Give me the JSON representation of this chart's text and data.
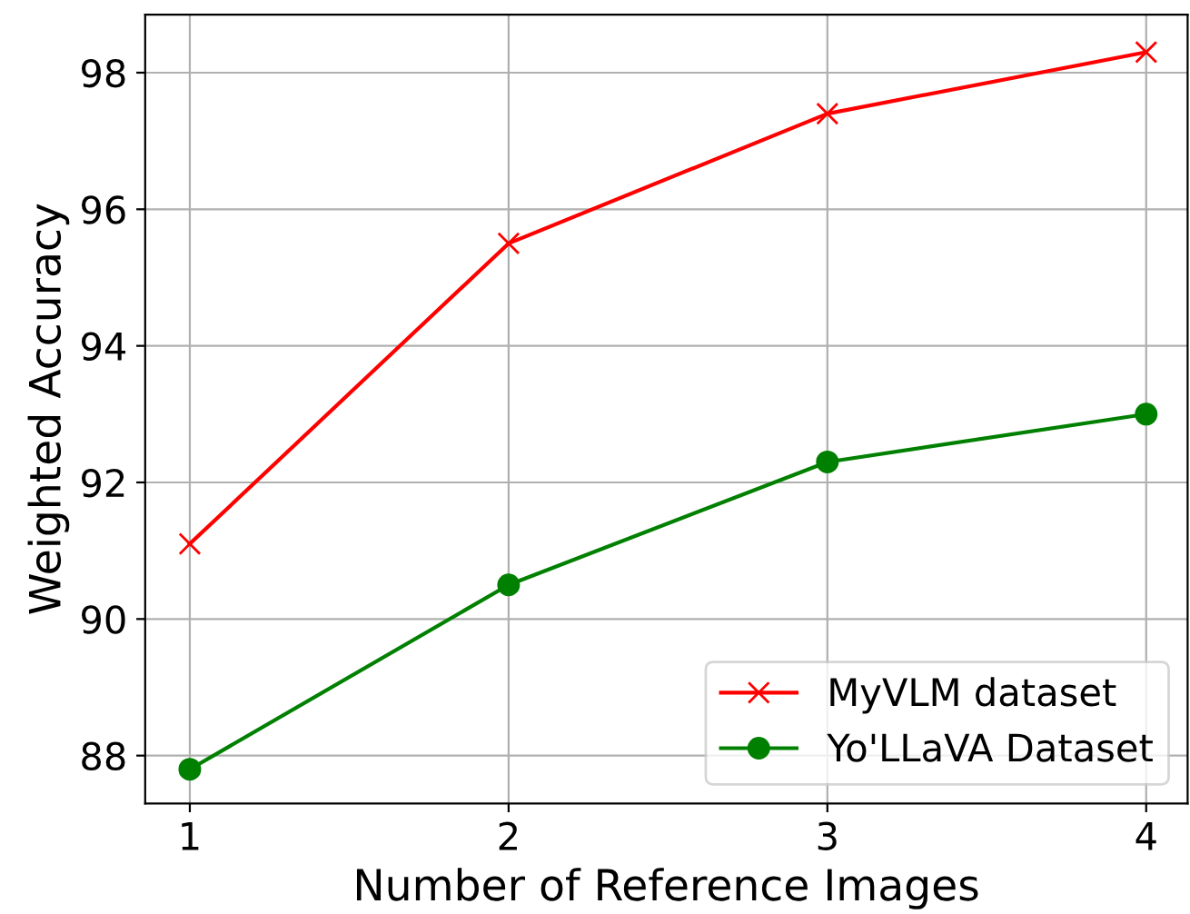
{
  "chart_data": {
    "type": "line",
    "xlabel": "Number of Reference Images",
    "ylabel": "Weighted Accuracy",
    "x": [
      1,
      2,
      3,
      4
    ],
    "series": [
      {
        "name": "MyVLM dataset",
        "color": "#ff0000",
        "marker": "cross",
        "values": [
          91.1,
          95.5,
          97.4,
          98.3
        ]
      },
      {
        "name": "Yo'LLaVA Dataset",
        "color": "#008000",
        "marker": "circle",
        "values": [
          87.8,
          90.5,
          92.3,
          93.0
        ]
      }
    ],
    "xlim": [
      0.86,
      4.13
    ],
    "ylim": [
      87.3,
      98.85
    ],
    "xticks": [
      1,
      2,
      3,
      4
    ],
    "yticks": [
      88,
      90,
      92,
      94,
      96,
      98
    ],
    "grid": true,
    "legend": "bottom right",
    "line_style": "solid"
  }
}
